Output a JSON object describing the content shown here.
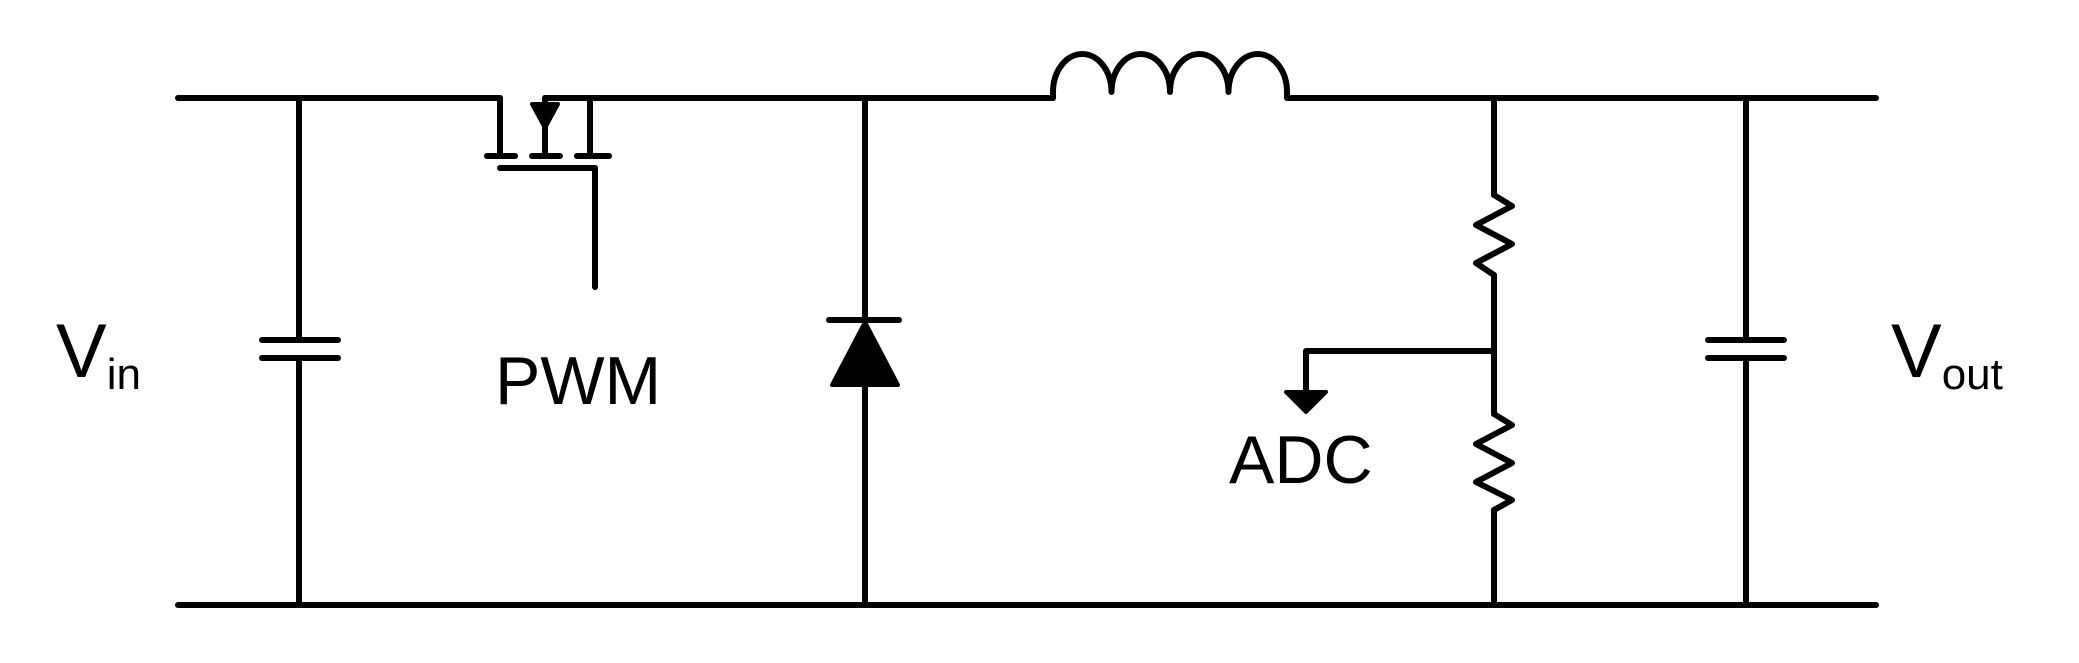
{
  "labels": {
    "vin_main": "V",
    "vin_sub": "in",
    "vout_main": "V",
    "vout_sub": "out",
    "pwm": "PWM",
    "adc": "ADC"
  },
  "colors": {
    "wire": "#000000",
    "background": "#ffffff"
  },
  "components": [
    "input-capacitor",
    "mosfet",
    "diode",
    "inductor",
    "resistor-top",
    "resistor-bottom",
    "output-capacitor"
  ]
}
